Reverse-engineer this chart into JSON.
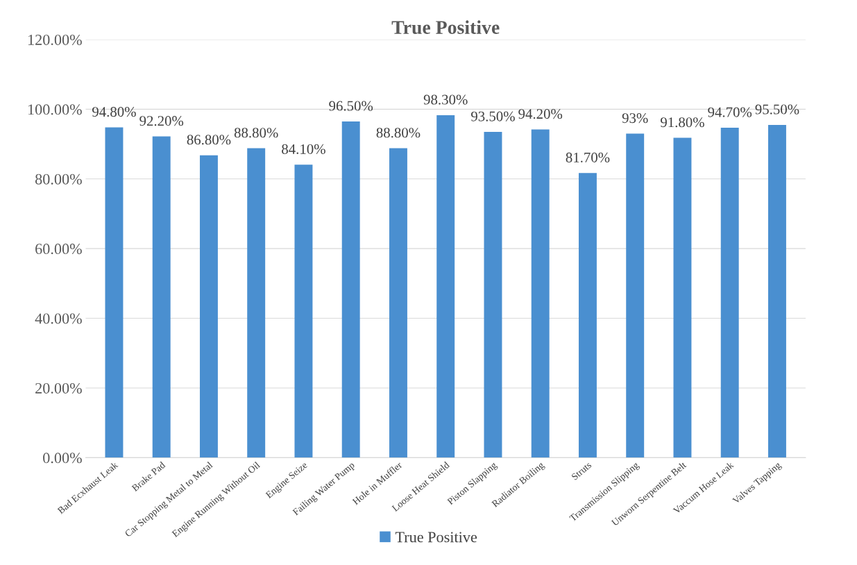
{
  "chart_data": {
    "type": "bar",
    "title": "True Positive",
    "categories": [
      "Bad Ecxhaust Leak",
      "Brake Pad",
      "Car Stopping Metal to Metal",
      "Engine Running Without Oil",
      "Engine Seize",
      "Failing Water Pump",
      "Hole in Muffler",
      "Loose Heat Shield",
      "Piston Slapping",
      "Radiator Boiling",
      "Struts",
      "Transmission Slipping",
      "Unworn Serpentine Belt",
      "Vaccum Hose Leak",
      "Valves Tapping"
    ],
    "series": [
      {
        "name": "True Positive",
        "color": "#4a8fd0",
        "values": [
          94.8,
          92.2,
          86.8,
          88.8,
          84.1,
          96.5,
          88.8,
          98.3,
          93.5,
          94.2,
          81.7,
          93,
          91.8,
          94.7,
          95.5
        ],
        "value_labels": [
          "94.80%",
          "92.20%",
          "86.80%",
          "88.80%",
          "84.10%",
          "96.50%",
          "88.80%",
          "98.30%",
          "93.50%",
          "94.20%",
          "81.70%",
          "93%",
          "91.80%",
          "94.70%",
          "95.50%"
        ]
      }
    ],
    "ylim": [
      0,
      120
    ],
    "yticks": [
      {
        "value": 0,
        "label": "0.00%"
      },
      {
        "value": 20,
        "label": "20.00%"
      },
      {
        "value": 40,
        "label": "40.00%"
      },
      {
        "value": 60,
        "label": "60.00%"
      },
      {
        "value": 80,
        "label": "80.00%"
      },
      {
        "value": 100,
        "label": "100.00%"
      },
      {
        "value": 120,
        "label": "120.00%"
      }
    ],
    "grid": "y",
    "legend": "bottom"
  }
}
